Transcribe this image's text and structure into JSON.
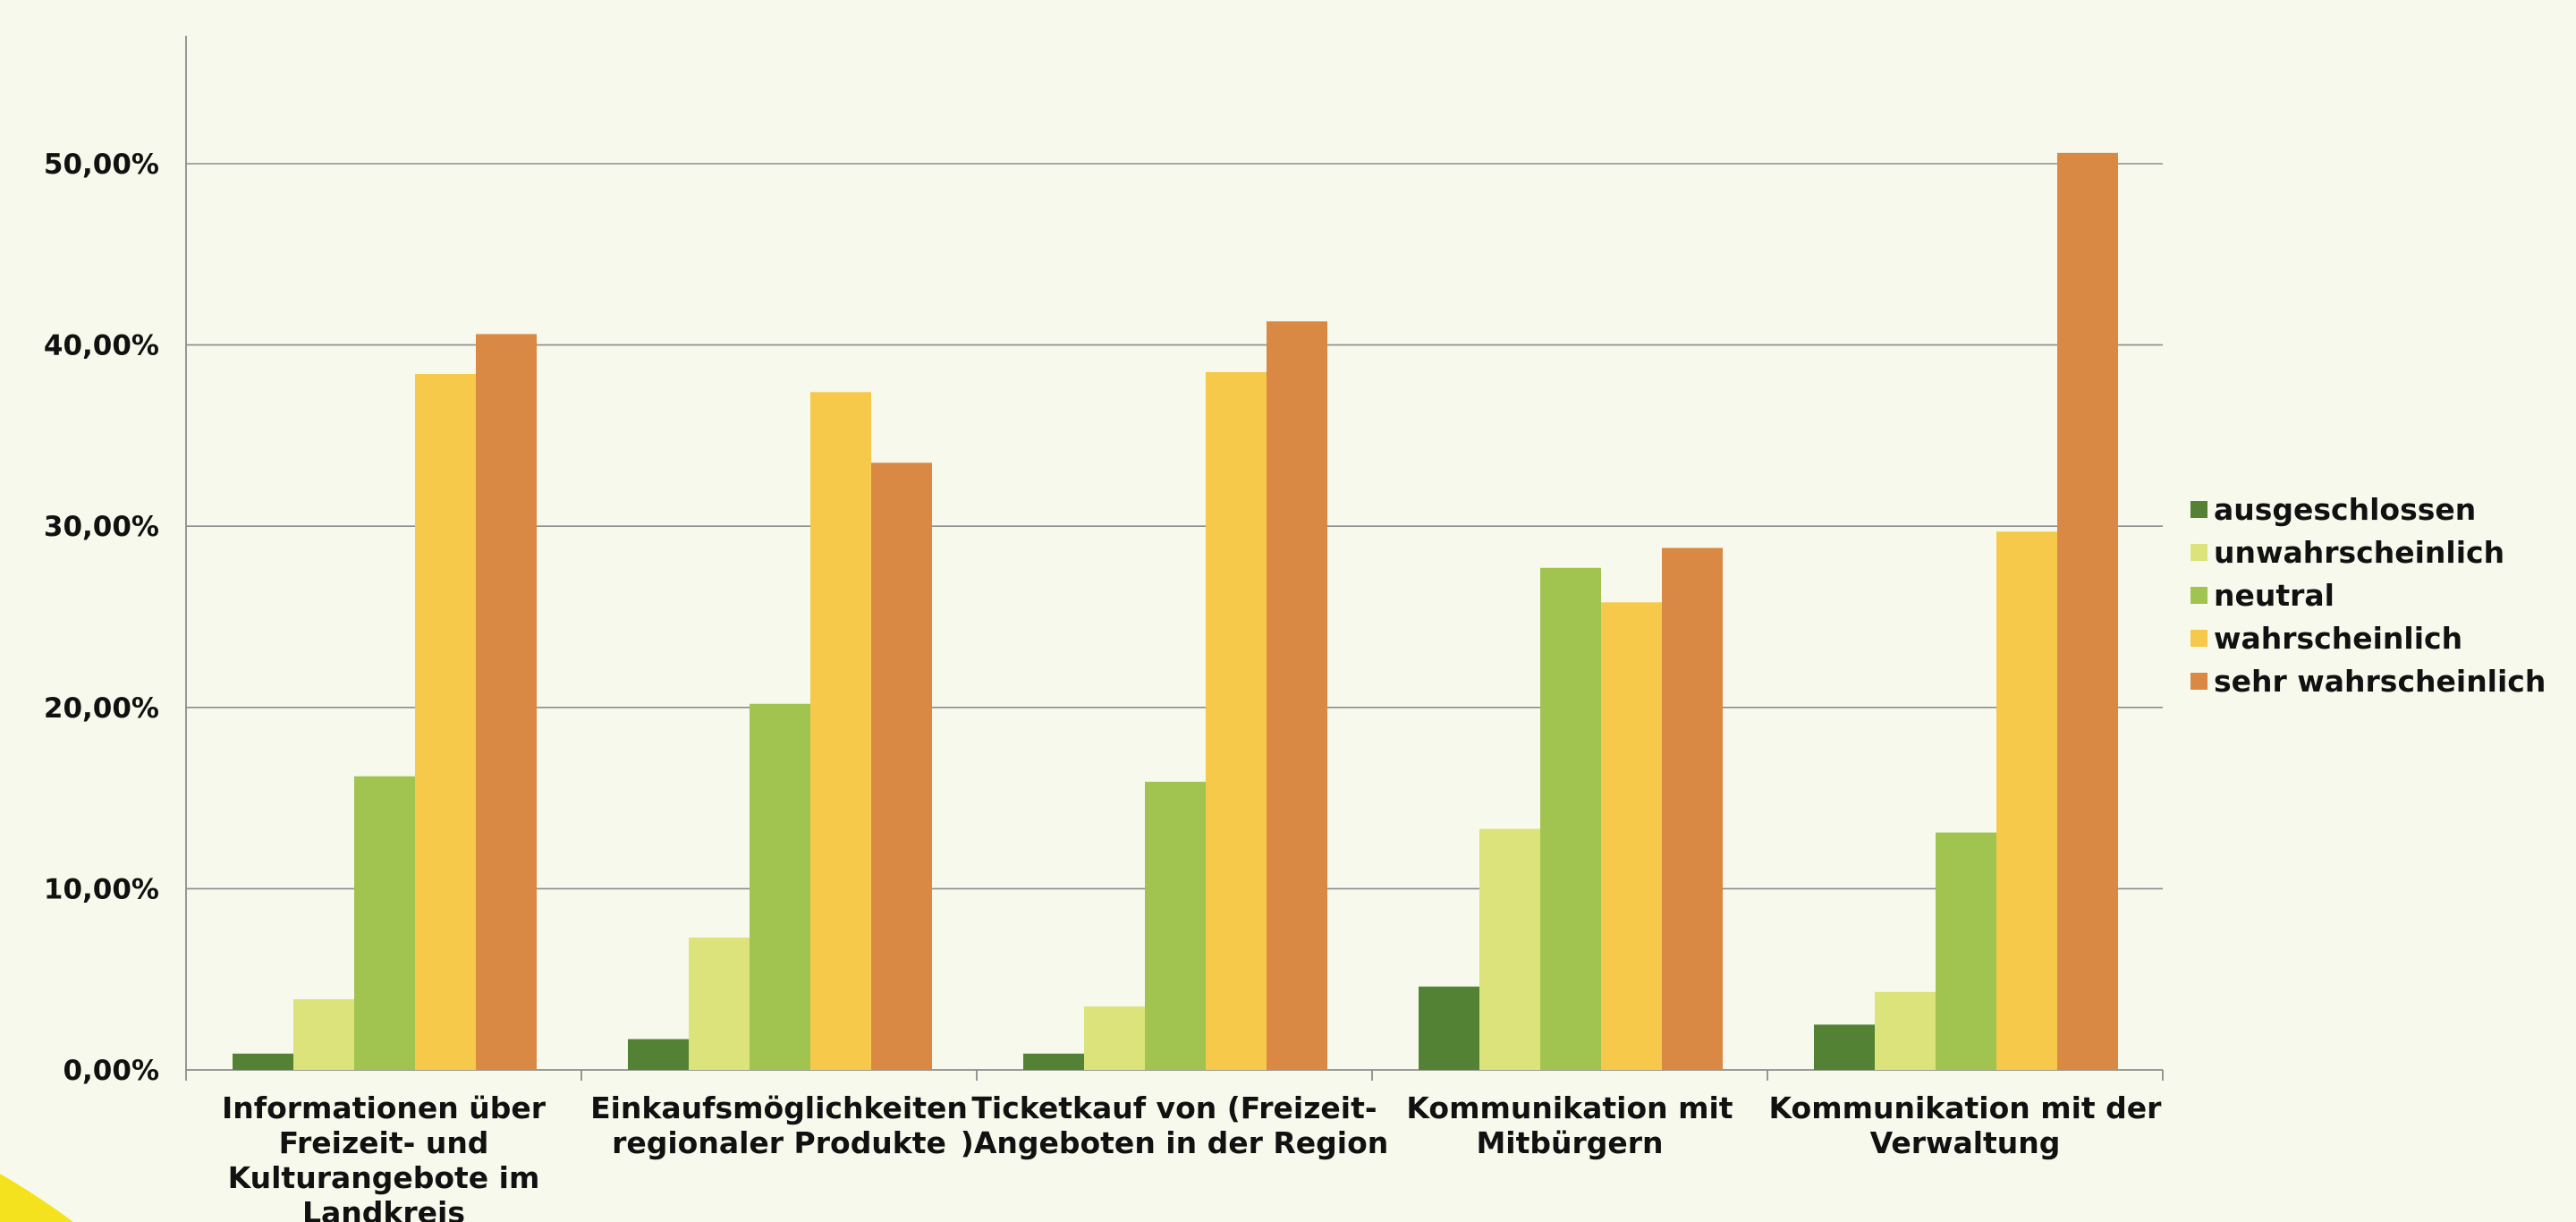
{
  "chart_data": {
    "type": "bar",
    "categories": [
      [
        "Informationen über",
        "Freizeit- und",
        "Kulturangebote im",
        "Landkreis"
      ],
      [
        "Einkaufsmöglichkeiten",
        "regionaler Produkte"
      ],
      [
        "Ticketkauf von (Freizeit-",
        ")Angeboten in der Region"
      ],
      [
        "Kommunikation mit",
        "Mitbürgern"
      ],
      [
        "Kommunikation mit der",
        "Verwaltung"
      ]
    ],
    "series": [
      {
        "name": "ausgeschlossen",
        "color": "#548235",
        "values": [
          0.9,
          1.7,
          0.9,
          4.6,
          2.5
        ]
      },
      {
        "name": "unwahrscheinlich",
        "color": "#dbe37a",
        "values": [
          3.9,
          7.3,
          3.5,
          13.3,
          4.3
        ]
      },
      {
        "name": "neutral",
        "color": "#a1c34f",
        "values": [
          16.2,
          20.2,
          15.9,
          27.7,
          13.1
        ]
      },
      {
        "name": "wahrscheinlich",
        "color": "#f6c94a",
        "values": [
          38.4,
          37.4,
          38.5,
          25.8,
          29.7
        ]
      },
      {
        "name": "sehr wahrscheinlich",
        "color": "#d98943",
        "values": [
          40.6,
          33.5,
          41.3,
          28.8,
          50.6
        ]
      }
    ],
    "y_ticks": [
      "0,00%",
      "10,00%",
      "20,00%",
      "30,00%",
      "40,00%",
      "50,00%"
    ],
    "ylim": [
      0,
      50
    ],
    "grid": true,
    "legend_position": "right",
    "gridline_color": "#8c8c8c",
    "axis_color": "#8c8c8c",
    "text_color": "#111111",
    "background_color": "#f7f9ec",
    "accent_shape_color": "#f5e21f"
  }
}
